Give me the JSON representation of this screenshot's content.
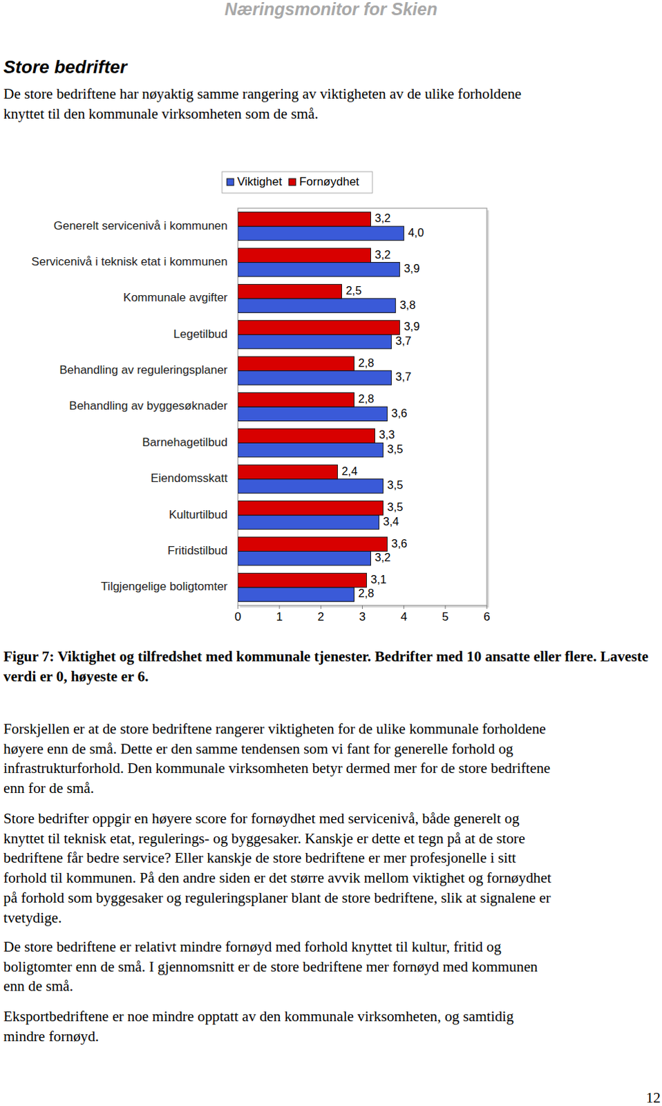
{
  "header": {
    "running_title": "Næringsmonitor for Skien"
  },
  "section_title": "Store bedrifter",
  "intro": [
    "De store bedriftene har nøyaktig samme rangering av viktigheten av de ulike forholdene",
    "knyttet til den kommunale virksomheten som de små."
  ],
  "chart_data": {
    "type": "bar",
    "orientation": "horizontal",
    "data_labels": true,
    "legend": "top",
    "grid": false,
    "categories": [
      "Generelt servicenivå i kommunen",
      "Servicenivå i teknisk etat i kommunen",
      "Kommunale avgifter",
      "Legetilbud",
      "Behandling av reguleringsplaner",
      "Behandling av byggesøknader",
      "Barnehagetilbud",
      "Eiendomsskatt",
      "Kulturtilbud",
      "Fritidstilbud",
      "Tilgjengelige boligtomter"
    ],
    "series": [
      {
        "name": "Viktighet",
        "color": "#3a5ad8",
        "values": [
          4.0,
          3.9,
          3.8,
          3.7,
          3.7,
          3.6,
          3.5,
          3.5,
          3.4,
          3.2,
          2.8
        ],
        "value_labels": [
          "4,0",
          "3,9",
          "3,8",
          "3,7",
          "3,7",
          "3,6",
          "3,5",
          "3,5",
          "3,4",
          "3,2",
          "2,8"
        ]
      },
      {
        "name": "Fornøydhet",
        "color": "#d80000",
        "values": [
          3.2,
          3.2,
          2.5,
          3.9,
          2.8,
          2.8,
          3.3,
          2.4,
          3.5,
          3.6,
          3.1
        ],
        "value_labels": [
          "3,2",
          "3,2",
          "2,5",
          "3,9",
          "2,8",
          "2,8",
          "3,3",
          "2,4",
          "3,5",
          "3,6",
          "3,1"
        ]
      }
    ],
    "xlim": [
      0,
      6
    ],
    "xticks": [
      0,
      1,
      2,
      3,
      4,
      5,
      6
    ]
  },
  "caption": [
    "Figur 7: Viktighet og tilfredshet med kommunale tjenester.  Bedrifter med 10 ansatte eller flere. Laveste",
    "verdi er 0, høyeste er 6."
  ],
  "paragraphs": [
    [
      "Forskjellen er at de store bedriftene rangerer viktigheten for de ulike kommunale forholdene",
      "høyere enn de små.  Dette er den samme tendensen som vi fant for generelle forhold og",
      "infrastrukturforhold.  Den kommunale virksomheten betyr dermed mer for de store bedriftene",
      "enn for de små."
    ],
    [
      "Store bedrifter oppgir en høyere score for fornøydhet med servicenivå, både generelt og",
      "knyttet til teknisk etat, regulerings- og byggesaker.  Kanskje er dette et tegn på at de store",
      "bedriftene får bedre service?  Eller kanskje de store bedriftene er mer profesjonelle i sitt",
      "forhold til kommunen.  På den andre siden er det større avvik mellom viktighet og fornøydhet",
      "på forhold som byggesaker og reguleringsplaner blant de store bedriftene, slik at signalene er",
      "tvetydige."
    ],
    [
      "De store bedriftene er relativt mindre fornøyd med forhold knyttet til kultur, fritid og",
      "boligtomter enn de små.  I gjennomsnitt er de store bedriftene mer fornøyd med kommunen",
      "enn de små."
    ],
    [
      "Eksportbedriftene er noe mindre opptatt av den kommunale virksomheten, og samtidig",
      "mindre fornøyd."
    ]
  ],
  "page_number": 12
}
